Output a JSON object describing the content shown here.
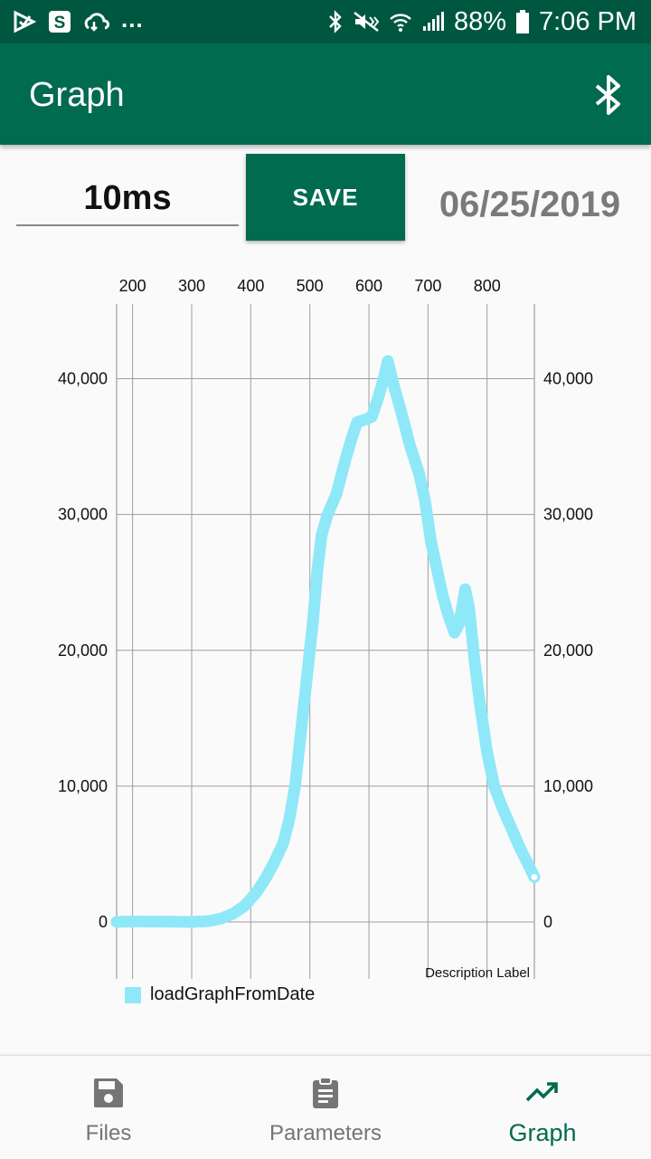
{
  "status_bar": {
    "icons_left": [
      "play-store-icon",
      "s-app-icon",
      "cloud-sync-icon"
    ],
    "overflow": "...",
    "icons_right": [
      "bluetooth-icon",
      "mute-icon",
      "wifi-icon",
      "signal-icon"
    ],
    "battery": "88%",
    "battery_icon": "battery-icon",
    "time": "7:06 PM"
  },
  "app_bar": {
    "title": "Graph",
    "action_icon": "bluetooth-icon"
  },
  "controls": {
    "interval_value": "10ms",
    "save_label": "SAVE",
    "date": "06/25/2019"
  },
  "chart_data": {
    "type": "scatter",
    "x_ticks": [
      "200",
      "300",
      "400",
      "500",
      "600",
      "700",
      "800"
    ],
    "y_ticks_left": [
      "0",
      "10,000",
      "20,000",
      "30,000",
      "40,000"
    ],
    "y_ticks_right": [
      "0",
      "10,000",
      "20,000",
      "30,000",
      "40,000"
    ],
    "x_axis_position": "top",
    "xlim": [
      173,
      880
    ],
    "ylim": [
      -4200,
      45500
    ],
    "grid": true,
    "description": "Description Label",
    "legend_position": "bottom-left",
    "series": [
      {
        "name": "loadGraphFromDate",
        "color": "#8ee8f8",
        "points": [
          [
            173,
            0
          ],
          [
            200,
            30
          ],
          [
            250,
            20
          ],
          [
            300,
            0
          ],
          [
            330,
            60
          ],
          [
            350,
            250
          ],
          [
            370,
            600
          ],
          [
            390,
            1200
          ],
          [
            410,
            2200
          ],
          [
            425,
            3200
          ],
          [
            440,
            4400
          ],
          [
            455,
            5800
          ],
          [
            465,
            7500
          ],
          [
            475,
            10000
          ],
          [
            485,
            14000
          ],
          [
            495,
            18000
          ],
          [
            505,
            22000
          ],
          [
            513,
            26000
          ],
          [
            520,
            28500
          ],
          [
            530,
            30000
          ],
          [
            545,
            31500
          ],
          [
            560,
            34000
          ],
          [
            570,
            35500
          ],
          [
            580,
            36800
          ],
          [
            595,
            37000
          ],
          [
            605,
            37200
          ],
          [
            615,
            38500
          ],
          [
            625,
            40000
          ],
          [
            632,
            41300
          ],
          [
            642,
            39500
          ],
          [
            655,
            37500
          ],
          [
            670,
            35000
          ],
          [
            685,
            33000
          ],
          [
            695,
            31000
          ],
          [
            705,
            28000
          ],
          [
            715,
            26000
          ],
          [
            725,
            24000
          ],
          [
            735,
            22500
          ],
          [
            745,
            21300
          ],
          [
            753,
            22000
          ],
          [
            763,
            24500
          ],
          [
            770,
            23000
          ],
          [
            778,
            19500
          ],
          [
            788,
            16000
          ],
          [
            800,
            12500
          ],
          [
            812,
            10000
          ],
          [
            825,
            8500
          ],
          [
            840,
            7000
          ],
          [
            855,
            5500
          ],
          [
            870,
            4200
          ],
          [
            880,
            3300
          ]
        ]
      }
    ]
  },
  "bottom_nav": {
    "items": [
      {
        "label": "Files",
        "icon": "save-icon"
      },
      {
        "label": "Parameters",
        "icon": "clipboard-icon"
      },
      {
        "label": "Graph",
        "icon": "trending-up-icon"
      }
    ],
    "active": "Graph",
    "active_color": "#016b4f"
  }
}
